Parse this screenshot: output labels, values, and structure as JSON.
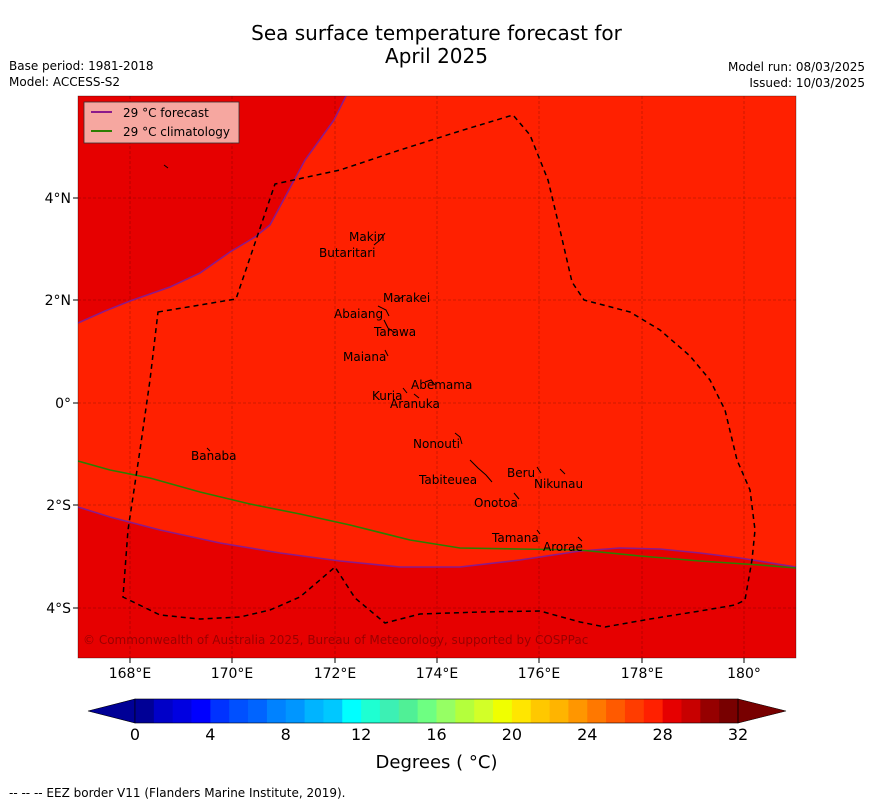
{
  "header": {
    "title_line1": "Sea surface temperature forecast for",
    "title_line2": "April 2025",
    "base_period": "Base period: 1981-2018",
    "model": "Model: ACCESS-S2",
    "model_run": "Model run: 08/03/2025",
    "issued": "Issued: 10/03/2025"
  },
  "map": {
    "lon_ticks": [
      "168°E",
      "170°E",
      "172°E",
      "174°E",
      "176°E",
      "178°E",
      "180°"
    ],
    "lat_ticks": [
      "4°N",
      "2°N",
      "0°",
      "2°S",
      "4°S"
    ],
    "legend": [
      {
        "label": "29 °C  forecast",
        "color": "#8b1a8b"
      },
      {
        "label": "29 °C  climatology",
        "color": "#2e7d00"
      }
    ],
    "copyright": "© Commonwealth of Australia 2025, Bureau of Meteorology, supported by COSPPac",
    "islands": [
      "Makin",
      "Butaritari",
      "Marakei",
      "Abaiang",
      "Tarawa",
      "Maiana",
      "Abemama",
      "Kuria",
      "Aranuka",
      "Banaba",
      "Nonouti",
      "Beru",
      "Nikunau",
      "Tabiteuea",
      "Onotoa",
      "Tamana",
      "Arorae"
    ],
    "colors": {
      "warm_field": "#ff2000",
      "hot_field": "#e60000",
      "eez": "#000000"
    }
  },
  "colorbar": {
    "ticks": [
      "0",
      "4",
      "8",
      "12",
      "16",
      "20",
      "24",
      "28",
      "32"
    ],
    "label": "Degrees ( °C)",
    "colors": [
      "#000096",
      "#0000c8",
      "#0000e1",
      "#0000ff",
      "#0032ff",
      "#0050ff",
      "#0064ff",
      "#0082ff",
      "#0096ff",
      "#00b4ff",
      "#00c8ff",
      "#00ffff",
      "#1effd2",
      "#3cf0b4",
      "#50f096",
      "#6eff82",
      "#96ff64",
      "#b4ff3c",
      "#d2ff28",
      "#f0ff00",
      "#ffe600",
      "#ffc800",
      "#ffb400",
      "#ff9600",
      "#ff7800",
      "#ff5a00",
      "#ff3c00",
      "#ff2000",
      "#e60000",
      "#c80000",
      "#960000",
      "#780000"
    ]
  },
  "footer": "--  --  -- EEZ border V11 (Flanders Marine Institute, 2019)."
}
